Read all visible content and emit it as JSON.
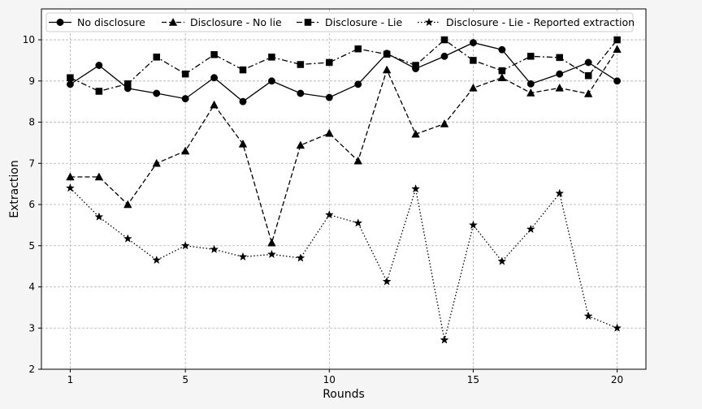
{
  "chart_data": {
    "type": "line",
    "xlabel": "Rounds",
    "ylabel": "Extraction",
    "xlim": [
      0,
      21
    ],
    "ylim": [
      2,
      10.75
    ],
    "xticks": [
      1,
      5,
      10,
      15,
      20
    ],
    "yticks": [
      2,
      3,
      4,
      5,
      6,
      7,
      8,
      9,
      10
    ],
    "grid": true,
    "legend_position": "top",
    "x": [
      1,
      2,
      3,
      4,
      5,
      6,
      7,
      8,
      9,
      10,
      11,
      12,
      13,
      14,
      15,
      16,
      17,
      18,
      19,
      20
    ],
    "series": [
      {
        "name": "No disclosure",
        "line_style": "solid",
        "marker": "circle",
        "values": [
          8.92,
          9.38,
          8.82,
          8.7,
          8.57,
          9.08,
          8.5,
          9.0,
          8.7,
          8.6,
          8.92,
          9.67,
          9.3,
          9.6,
          9.93,
          9.76,
          8.93,
          9.17,
          9.45,
          9.0
        ]
      },
      {
        "name": "Disclosure - No lie",
        "line_style": "dashed",
        "marker": "triangle",
        "values": [
          6.67,
          6.67,
          6.0,
          7.0,
          7.3,
          8.42,
          7.47,
          5.07,
          7.44,
          7.73,
          7.06,
          9.27,
          7.71,
          7.96,
          8.83,
          9.08,
          8.71,
          8.83,
          8.69,
          9.77
        ]
      },
      {
        "name": "Disclosure - Lie",
        "line_style": "dashdot",
        "marker": "square",
        "values": [
          9.08,
          8.75,
          8.93,
          9.58,
          9.17,
          9.64,
          9.27,
          9.58,
          9.4,
          9.45,
          9.78,
          9.65,
          9.38,
          10.0,
          9.5,
          9.25,
          9.6,
          9.57,
          9.13,
          10.0
        ]
      },
      {
        "name": "Disclosure - Lie - Reported extraction",
        "line_style": "dotted",
        "marker": "star",
        "values": [
          6.4,
          5.7,
          5.17,
          4.65,
          5.0,
          4.91,
          4.73,
          4.79,
          4.7,
          5.75,
          5.55,
          4.13,
          6.38,
          2.71,
          5.5,
          4.62,
          5.4,
          6.27,
          3.29,
          3.0
        ]
      }
    ]
  }
}
